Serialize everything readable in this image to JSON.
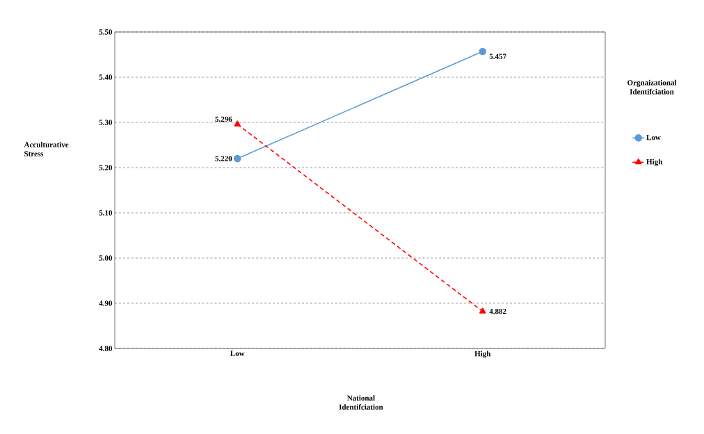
{
  "chart_data": {
    "type": "line",
    "xlabel": "National Identifciation",
    "ylabel": "Acculturative Stress",
    "legend_title": "Orgnaizational Identifciation",
    "categories": [
      "Low",
      "High"
    ],
    "series": [
      {
        "name": "Low",
        "color": "#5b9bd5",
        "values": [
          5.22,
          5.457
        ],
        "value_labels": [
          "5.220",
          "5.457"
        ],
        "marker": "circle",
        "line_style": "solid"
      },
      {
        "name": "High",
        "color": "#ff0000",
        "values": [
          5.296,
          4.882
        ],
        "value_labels": [
          "5.296",
          "4.882"
        ],
        "marker": "triangle",
        "line_style": "dashed"
      }
    ],
    "ylim": [
      4.8,
      5.5
    ],
    "yticks": [
      {
        "value": 4.8,
        "label": "4.80"
      },
      {
        "value": 4.9,
        "label": "4.90"
      },
      {
        "value": 5.0,
        "label": "5.00"
      },
      {
        "value": 5.1,
        "label": "5.10"
      },
      {
        "value": 5.2,
        "label": "5.20"
      },
      {
        "value": 5.3,
        "label": "5.30"
      },
      {
        "value": 5.4,
        "label": "5.40"
      },
      {
        "value": 5.5,
        "label": "5.50"
      }
    ],
    "grid": "y",
    "legend": "right"
  }
}
